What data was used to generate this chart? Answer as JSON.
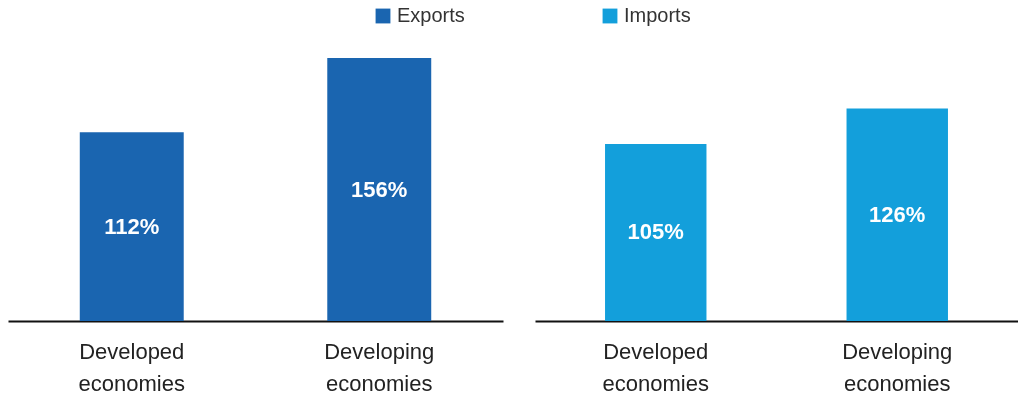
{
  "chart_data": [
    {
      "type": "bar",
      "categories": [
        "Developed economies",
        "Developing economies"
      ],
      "series": [
        {
          "name": "Exports",
          "color": "#1a65b0",
          "values": [
            112,
            156
          ],
          "value_labels": [
            "112%",
            "156%"
          ]
        }
      ],
      "legend": "top right",
      "tick_labels": "x"
    },
    {
      "type": "bar",
      "categories": [
        "Developed economies",
        "Developing economies"
      ],
      "series": [
        {
          "name": "Imports",
          "color": "#139fdb",
          "values": [
            105,
            126
          ],
          "value_labels": [
            "105%",
            "126%"
          ]
        }
      ],
      "legend": "top left",
      "tick_labels": "x"
    }
  ]
}
